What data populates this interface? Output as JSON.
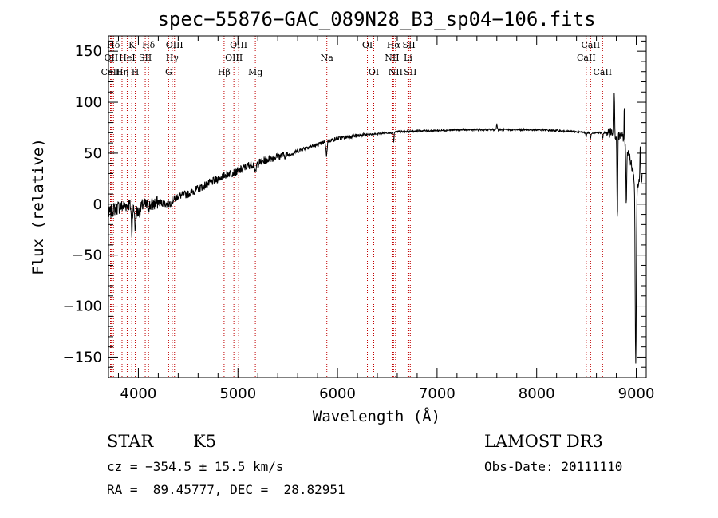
{
  "chart_data": {
    "type": "line",
    "title": "spec−55876−GAC_089N28_B3_sp04−106.fits",
    "xlabel": "Wavelength (Å)",
    "ylabel": "Flux (relative)",
    "xlim": [
      3700,
      9100
    ],
    "ylim": [
      -170,
      165
    ],
    "xticks": [
      4000,
      5000,
      6000,
      7000,
      8000,
      9000
    ],
    "yticks": [
      150,
      100,
      50,
      0,
      -50,
      -100,
      -150
    ],
    "ytick_labels": [
      "150",
      "100",
      "50",
      "0",
      "−50",
      "−100",
      "−150"
    ],
    "series": [
      {
        "name": "spectrum",
        "x": [
          3700,
          3750,
          3800,
          3850,
          3900,
          3950,
          4000,
          4050,
          4100,
          4150,
          4200,
          4300,
          4400,
          4500,
          4600,
          4700,
          4800,
          4900,
          5000,
          5100,
          5200,
          5300,
          5400,
          5500,
          5600,
          5700,
          5800,
          5900,
          6000,
          6100,
          6200,
          6300,
          6400,
          6500,
          6550,
          6600,
          6700,
          6800,
          6900,
          7000,
          7200,
          7400,
          7600,
          7800,
          8000,
          8200,
          8400,
          8500,
          8600,
          8700,
          8750,
          8800,
          8850,
          8900,
          8950,
          9000,
          9050,
          9100
        ],
        "y": [
          -10,
          -5,
          -3,
          -2,
          0,
          -5,
          -8,
          0,
          -2,
          0,
          2,
          0,
          8,
          10,
          15,
          20,
          25,
          30,
          32,
          38,
          40,
          44,
          47,
          48,
          52,
          56,
          58,
          62,
          64,
          66,
          67,
          68,
          69,
          70,
          70,
          71,
          71,
          72,
          72,
          72,
          73,
          73,
          73,
          73,
          73,
          72,
          71,
          70,
          70,
          70,
          70,
          65,
          68,
          55,
          40,
          20,
          25,
          40
        ]
      }
    ],
    "spectral_lines": [
      {
        "label": "Hδ",
        "x": 3750,
        "row": 0
      },
      {
        "label": "OII",
        "x": 3727,
        "row": 1
      },
      {
        "label": "CaII",
        "x": 3720,
        "row": 2
      },
      {
        "label": "Hη",
        "x": 3836,
        "row": 2
      },
      {
        "label": "K",
        "x": 3934,
        "row": 0
      },
      {
        "label": "HeI",
        "x": 3888,
        "row": 1
      },
      {
        "label": "SII",
        "x": 4069,
        "row": 1
      },
      {
        "label": "H",
        "x": 3969,
        "row": 2
      },
      {
        "label": "Hδ",
        "x": 4102,
        "row": 0
      },
      {
        "label": "OIII",
        "x": 4363,
        "row": 0
      },
      {
        "label": "Hγ",
        "x": 4340,
        "row": 1
      },
      {
        "label": "G",
        "x": 4304,
        "row": 2
      },
      {
        "label": "OIII",
        "x": 5007,
        "row": 0
      },
      {
        "label": "OIII",
        "x": 4959,
        "row": 1
      },
      {
        "label": "Hβ",
        "x": 4861,
        "row": 2
      },
      {
        "label": "Mg",
        "x": 5175,
        "row": 2
      },
      {
        "label": "Na",
        "x": 5893,
        "row": 1
      },
      {
        "label": "OI",
        "x": 6300,
        "row": 0
      },
      {
        "label": "OI",
        "x": 6364,
        "row": 2
      },
      {
        "label": "Hα",
        "x": 6563,
        "row": 0
      },
      {
        "label": "SII",
        "x": 6717,
        "row": 0
      },
      {
        "label": "NII",
        "x": 6548,
        "row": 1
      },
      {
        "label": "Li",
        "x": 6708,
        "row": 1
      },
      {
        "label": "NII",
        "x": 6583,
        "row": 2
      },
      {
        "label": "SII",
        "x": 6731,
        "row": 2
      },
      {
        "label": "CaII",
        "x": 8542,
        "row": 0
      },
      {
        "label": "CaII",
        "x": 8498,
        "row": 1
      },
      {
        "label": "CaII",
        "x": 8662,
        "row": 2
      }
    ]
  },
  "info": {
    "class": "STAR",
    "subclass": "K5",
    "survey": "LAMOST DR3",
    "cz": "cz = −354.5 ± 15.5 km/s",
    "obs_date": "Obs-Date: 20111110",
    "radec": "RA =  89.45777, DEC =  28.82951"
  }
}
